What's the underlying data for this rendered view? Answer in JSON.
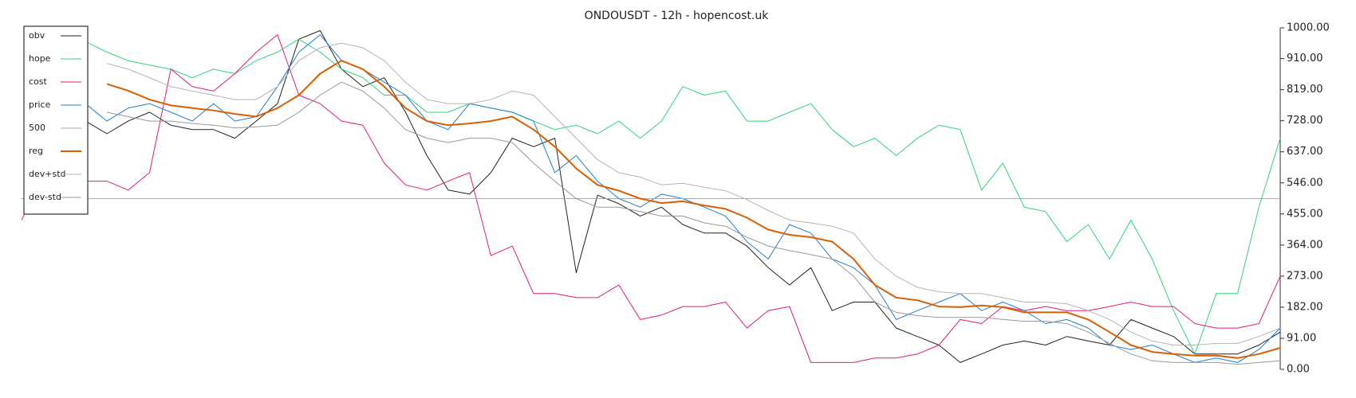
{
  "chart_data": {
    "type": "line",
    "title": "ONDOUSDT - 12h - hopencost.uk",
    "legend": "upper left",
    "ylim": [
      0,
      1000
    ],
    "yticks": [
      {
        "value": 0,
        "label": "0.00"
      },
      {
        "value": 91,
        "label": "91.00"
      },
      {
        "value": 182,
        "label": "182.00"
      },
      {
        "value": 273,
        "label": "273.00"
      },
      {
        "value": 364,
        "label": "364.00"
      },
      {
        "value": 455,
        "label": "455.00"
      },
      {
        "value": 546,
        "label": "546.00"
      },
      {
        "value": 637,
        "label": "637.00"
      },
      {
        "value": 728,
        "label": "728.00"
      },
      {
        "value": 819,
        "label": "819.00"
      },
      {
        "value": 910,
        "label": "910.00"
      },
      {
        "value": 1000,
        "label": "1000.00"
      }
    ],
    "series": [
      {
        "name": "obv",
        "color": "#222222",
        "linewidth": 1,
        "values": [
          null,
          null,
          null,
          727,
          690,
          727,
          753,
          715,
          702,
          702,
          677,
          727,
          778,
          967,
          992,
          879,
          828,
          854,
          753,
          626,
          525,
          513,
          576,
          677,
          652,
          677,
          283,
          510,
          485,
          449,
          475,
          424,
          399,
          399,
          361,
          298,
          247,
          298,
          172,
          197,
          197,
          121,
          96,
          71,
          20,
          45,
          71,
          83,
          71,
          96,
          83,
          71,
          146,
          121,
          96,
          45,
          45,
          45,
          71,
          109
        ]
      },
      {
        "name": "hope",
        "color": "#2ed47a",
        "linewidth": 1,
        "values": [
          null,
          null,
          null,
          960,
          929,
          904,
          891,
          879,
          854,
          879,
          866,
          904,
          929,
          967,
          929,
          879,
          854,
          803,
          803,
          753,
          753,
          778,
          765,
          753,
          727,
          702,
          715,
          690,
          727,
          677,
          727,
          828,
          803,
          815,
          727,
          727,
          753,
          778,
          702,
          652,
          677,
          626,
          677,
          715,
          702,
          525,
          604,
          475,
          462,
          374,
          424,
          323,
          437,
          323,
          172,
          45,
          222,
          222,
          475,
          677
        ]
      },
      {
        "name": "cost",
        "color": "#e6197a",
        "linewidth": 1,
        "values": [
          437,
          563,
          551,
          551,
          551,
          525,
          576,
          879,
          828,
          815,
          866,
          929,
          980,
          803,
          778,
          727,
          715,
          604,
          540,
          525,
          551,
          576,
          333,
          361,
          222,
          222,
          210,
          210,
          247,
          146,
          159,
          184,
          184,
          197,
          121,
          172,
          184,
          20,
          20,
          20,
          33,
          33,
          45,
          71,
          146,
          134,
          184,
          172,
          184,
          172,
          172,
          184,
          197,
          184,
          184,
          134,
          121,
          121,
          134,
          273
        ]
      },
      {
        "name": "price",
        "color": "#1f7ed6",
        "linewidth": 1,
        "values": [
          null,
          null,
          null,
          778,
          727,
          765,
          778,
          753,
          727,
          778,
          727,
          740,
          828,
          929,
          980,
          904,
          879,
          841,
          803,
          727,
          702,
          778,
          765,
          753,
          727,
          576,
          626,
          551,
          500,
          475,
          513,
          500,
          475,
          449,
          374,
          323,
          424,
          399,
          323,
          298,
          247,
          146,
          172,
          197,
          222,
          172,
          197,
          172,
          134,
          146,
          121,
          71,
          58,
          71,
          45,
          20,
          33,
          20,
          58,
          121
        ]
      },
      {
        "name": "500",
        "color": "#aaaaaa",
        "linewidth": 1,
        "values": [
          500,
          500,
          500,
          500,
          500,
          500,
          500,
          500,
          500,
          500,
          500,
          500,
          500,
          500,
          500,
          500,
          500,
          500,
          500,
          500,
          500,
          500,
          500,
          500,
          500,
          500,
          500,
          500,
          500,
          500,
          500,
          500,
          500,
          500,
          500,
          500,
          500,
          500,
          500,
          500,
          500,
          500,
          500,
          500,
          500,
          500,
          500,
          500,
          500,
          500,
          500,
          500,
          500,
          500,
          500,
          500,
          500,
          500,
          500,
          500
        ]
      },
      {
        "name": "reg",
        "color": "#d95f02",
        "linewidth": 2,
        "values": [
          null,
          null,
          null,
          null,
          836,
          816,
          790,
          773,
          765,
          758,
          748,
          740,
          765,
          803,
          866,
          904,
          879,
          828,
          765,
          727,
          715,
          720,
          727,
          740,
          702,
          652,
          588,
          540,
          523,
          500,
          487,
          492,
          480,
          470,
          444,
          409,
          394,
          387,
          374,
          323,
          247,
          210,
          202,
          184,
          182,
          187,
          182,
          167,
          167,
          167,
          146,
          109,
          71,
          51,
          45,
          40,
          40,
          33,
          45,
          63
        ]
      },
      {
        "name": "dev+std",
        "color": "#b5b5b5",
        "linewidth": 1,
        "values": [
          null,
          null,
          null,
          null,
          896,
          879,
          854,
          828,
          815,
          803,
          790,
          790,
          828,
          904,
          942,
          955,
          942,
          904,
          841,
          790,
          778,
          778,
          790,
          815,
          803,
          740,
          677,
          614,
          576,
          563,
          540,
          545,
          533,
          523,
          497,
          465,
          437,
          429,
          419,
          399,
          323,
          273,
          240,
          227,
          222,
          222,
          210,
          197,
          197,
          192,
          172,
          146,
          109,
          83,
          71,
          71,
          76,
          76,
          96,
          121
        ]
      },
      {
        "name": "dev-std",
        "color": "#999999",
        "linewidth": 1,
        "values": [
          null,
          null,
          null,
          null,
          753,
          740,
          727,
          727,
          720,
          715,
          707,
          710,
          715,
          753,
          803,
          841,
          815,
          765,
          702,
          677,
          664,
          677,
          677,
          664,
          604,
          551,
          500,
          475,
          475,
          462,
          449,
          449,
          429,
          419,
          387,
          361,
          348,
          336,
          323,
          273,
          197,
          167,
          157,
          152,
          152,
          152,
          146,
          141,
          141,
          134,
          109,
          76,
          45,
          25,
          20,
          20,
          20,
          15,
          20,
          25
        ]
      }
    ]
  }
}
